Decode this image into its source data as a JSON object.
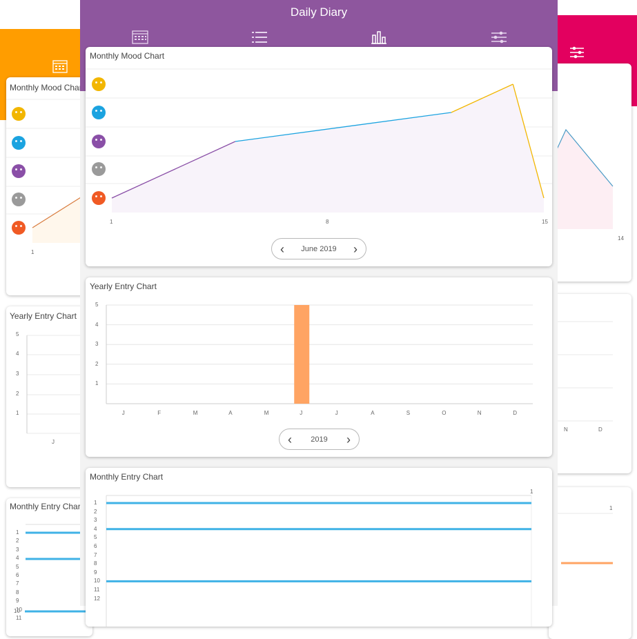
{
  "app": {
    "title": "Daily Diary"
  },
  "colors": {
    "center_header": "#8e569e",
    "left_header": "#ff9d00",
    "right_header": "#e3005f",
    "mood_happy": "#f2b600",
    "mood_good": "#1ba3e0",
    "mood_neutral_purple": "#8a4fa7",
    "mood_meh": "#9a9a9a",
    "mood_bad": "#f05a24",
    "bar": "#ffa463",
    "entry_line": "#3fb2e6"
  },
  "tabs": [
    {
      "icon": "calendar-icon"
    },
    {
      "icon": "list-icon"
    },
    {
      "icon": "bar-chart-icon"
    },
    {
      "icon": "settings-sliders-icon"
    }
  ],
  "center": {
    "monthly_mood": {
      "title": "Monthly Mood Chart",
      "x_ticks": [
        "1",
        "8",
        "15"
      ],
      "pager_label": "June 2019"
    },
    "yearly_entry": {
      "title": "Yearly Entry Chart",
      "y_ticks": [
        "5",
        "4",
        "3",
        "2",
        "1"
      ],
      "months": [
        "J",
        "F",
        "M",
        "A",
        "M",
        "J",
        "J",
        "A",
        "S",
        "O",
        "N",
        "D"
      ],
      "pager_label": "2019"
    },
    "monthly_entry": {
      "title": "Monthly Entry Chart",
      "top_tick": "1",
      "day_ticks": [
        "1",
        "2",
        "3",
        "4",
        "5",
        "6",
        "7",
        "8",
        "9",
        "10",
        "11",
        "12"
      ]
    }
  },
  "left": {
    "monthly_mood": {
      "title": "Monthly Mood Chart",
      "x_tick": "1"
    },
    "yearly_entry": {
      "title": "Yearly Entry Chart",
      "y_ticks": [
        "5",
        "4",
        "3",
        "2",
        "1"
      ],
      "x_tick": "J"
    },
    "monthly_entry": {
      "title": "Monthly Entry Chart",
      "day_ticks": [
        "1",
        "2",
        "3",
        "4",
        "5",
        "6",
        "7",
        "8",
        "9",
        "10",
        "11"
      ]
    }
  },
  "right": {
    "monthly_mood": {
      "x_tick": "14"
    },
    "yearly_entry": {
      "x_ticks": [
        "N",
        "D"
      ]
    },
    "monthly_entry": {
      "top_tick": "1"
    }
  },
  "chart_data": [
    {
      "type": "line",
      "x": [
        1,
        5,
        12,
        14,
        15
      ],
      "y": [
        1,
        3,
        4,
        5,
        1
      ],
      "y_levels": [
        "bad",
        "meh",
        "neutral",
        "good",
        "happy"
      ],
      "xlim": [
        1,
        15
      ],
      "ylim": [
        1,
        5
      ],
      "title": "Monthly Mood Chart"
    },
    {
      "type": "bar",
      "categories": [
        "J",
        "F",
        "M",
        "A",
        "M",
        "J",
        "J",
        "A",
        "S",
        "O",
        "N",
        "D"
      ],
      "values": [
        0,
        0,
        0,
        0,
        0,
        5,
        0,
        0,
        0,
        0,
        0,
        0
      ],
      "ylim": [
        0,
        5
      ],
      "title": "Yearly Entry Chart"
    },
    {
      "type": "bar",
      "orientation": "horizontal",
      "categories": [
        "1",
        "4",
        "10"
      ],
      "values": [
        1,
        1,
        1
      ],
      "xlim": [
        0,
        1
      ],
      "title": "Monthly Entry Chart"
    }
  ]
}
